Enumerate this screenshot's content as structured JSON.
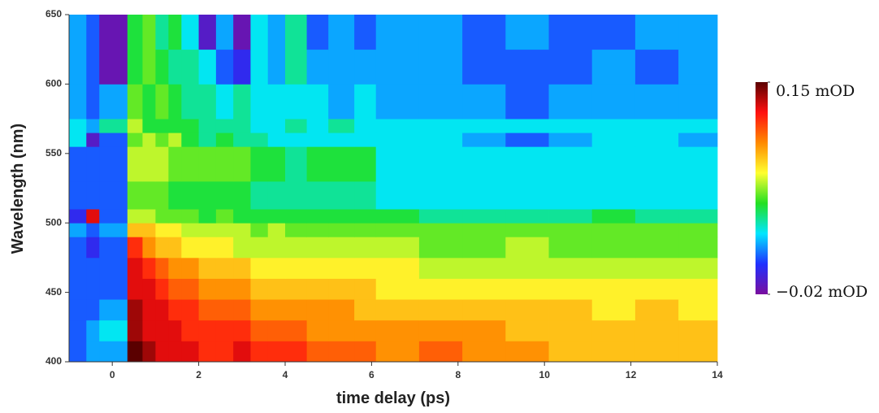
{
  "chart_data": {
    "type": "heatmap",
    "xlabel": "time delay (ps)",
    "ylabel": "Wavelength (nm)",
    "xlim": [
      -1,
      14
    ],
    "xticks": [
      0,
      2,
      4,
      6,
      8,
      10,
      12,
      14
    ],
    "ylim": [
      400,
      650
    ],
    "yticks": [
      400,
      450,
      500,
      550,
      600,
      650
    ],
    "x": [
      -1,
      -0.6,
      -0.3,
      0.35,
      0.7,
      1.0,
      1.3,
      1.6,
      2.0,
      2.4,
      2.8,
      3.2,
      3.6,
      4.0,
      4.5,
      5.0,
      5.6,
      6.1,
      7.1,
      8.1,
      9.1,
      10.1,
      11.1,
      12.1,
      13.1,
      14
    ],
    "y": [
      400,
      415,
      430,
      445,
      460,
      475,
      490,
      500,
      510,
      530,
      555,
      565,
      575,
      600,
      625,
      650
    ],
    "values": [
      [
        0.01,
        0.02,
        0.02,
        0.15,
        0.14,
        0.13,
        0.13,
        0.13,
        0.12,
        0.12,
        0.13,
        0.12,
        0.12,
        0.12,
        0.11,
        0.11,
        0.11,
        0.1,
        0.11,
        0.1,
        0.1,
        0.09,
        0.09,
        0.09,
        0.09
      ],
      [
        0.01,
        0.02,
        0.03,
        0.14,
        0.13,
        0.13,
        0.13,
        0.12,
        0.12,
        0.12,
        0.12,
        0.11,
        0.11,
        0.11,
        0.1,
        0.1,
        0.1,
        0.1,
        0.1,
        0.1,
        0.09,
        0.09,
        0.09,
        0.09,
        0.09
      ],
      [
        0.01,
        0.01,
        0.02,
        0.14,
        0.13,
        0.13,
        0.12,
        0.12,
        0.11,
        0.11,
        0.11,
        0.1,
        0.1,
        0.1,
        0.1,
        0.1,
        0.09,
        0.09,
        0.09,
        0.09,
        0.09,
        0.09,
        0.08,
        0.09,
        0.08
      ],
      [
        0.01,
        0.01,
        0.01,
        0.13,
        0.13,
        0.12,
        0.11,
        0.11,
        0.1,
        0.1,
        0.1,
        0.09,
        0.09,
        0.09,
        0.09,
        0.09,
        0.09,
        0.08,
        0.08,
        0.08,
        0.08,
        0.08,
        0.08,
        0.08,
        0.08
      ],
      [
        0.01,
        0.01,
        0.01,
        0.13,
        0.12,
        0.11,
        0.1,
        0.1,
        0.09,
        0.09,
        0.09,
        0.08,
        0.08,
        0.08,
        0.08,
        0.08,
        0.08,
        0.08,
        0.07,
        0.07,
        0.07,
        0.07,
        0.07,
        0.07,
        0.07
      ],
      [
        0.01,
        0.0,
        0.01,
        0.12,
        0.1,
        0.09,
        0.09,
        0.08,
        0.08,
        0.08,
        0.07,
        0.07,
        0.07,
        0.07,
        0.07,
        0.07,
        0.07,
        0.07,
        0.06,
        0.06,
        0.07,
        0.06,
        0.06,
        0.06,
        0.06
      ],
      [
        0.02,
        0.01,
        0.02,
        0.09,
        0.09,
        0.08,
        0.08,
        0.07,
        0.07,
        0.07,
        0.07,
        0.06,
        0.07,
        0.06,
        0.06,
        0.06,
        0.06,
        0.06,
        0.06,
        0.06,
        0.06,
        0.06,
        0.06,
        0.06,
        0.06
      ],
      [
        0.0,
        0.13,
        0.01,
        0.07,
        0.07,
        0.06,
        0.06,
        0.06,
        0.05,
        0.06,
        0.05,
        0.05,
        0.05,
        0.05,
        0.05,
        0.05,
        0.05,
        0.05,
        0.04,
        0.04,
        0.04,
        0.04,
        0.05,
        0.04,
        0.04
      ],
      [
        0.01,
        0.01,
        0.01,
        0.06,
        0.06,
        0.06,
        0.05,
        0.05,
        0.05,
        0.05,
        0.05,
        0.04,
        0.04,
        0.04,
        0.04,
        0.04,
        0.04,
        0.03,
        0.03,
        0.03,
        0.03,
        0.03,
        0.03,
        0.03,
        0.03
      ],
      [
        0.01,
        0.01,
        0.01,
        0.07,
        0.07,
        0.07,
        0.06,
        0.06,
        0.06,
        0.06,
        0.06,
        0.05,
        0.05,
        0.04,
        0.05,
        0.05,
        0.05,
        0.03,
        0.03,
        0.03,
        0.03,
        0.03,
        0.03,
        0.03,
        0.03
      ],
      [
        0.03,
        -0.01,
        0.01,
        0.06,
        0.07,
        0.06,
        0.07,
        0.05,
        0.04,
        0.05,
        0.04,
        0.04,
        0.03,
        0.03,
        0.03,
        0.03,
        0.03,
        0.03,
        0.03,
        0.02,
        0.01,
        0.02,
        0.03,
        0.03,
        0.02
      ],
      [
        0.03,
        0.02,
        0.04,
        0.07,
        0.05,
        0.05,
        0.05,
        0.05,
        0.04,
        0.04,
        0.04,
        0.03,
        0.03,
        0.04,
        0.03,
        0.04,
        0.03,
        0.03,
        0.03,
        0.03,
        0.03,
        0.03,
        0.03,
        0.03,
        0.03
      ],
      [
        0.02,
        0.01,
        0.02,
        0.06,
        0.05,
        0.06,
        0.05,
        0.04,
        0.04,
        0.03,
        0.04,
        0.03,
        0.03,
        0.03,
        0.03,
        0.02,
        0.03,
        0.02,
        0.02,
        0.02,
        0.01,
        0.02,
        0.02,
        0.02,
        0.02
      ],
      [
        0.02,
        0.01,
        -0.015,
        0.05,
        0.06,
        0.05,
        0.04,
        0.04,
        0.03,
        0.01,
        0.0,
        0.03,
        0.02,
        0.04,
        0.02,
        0.02,
        0.02,
        0.02,
        0.02,
        0.01,
        0.01,
        0.01,
        0.02,
        0.01,
        0.02
      ],
      [
        0.02,
        0.01,
        -0.015,
        0.05,
        0.06,
        0.04,
        0.05,
        0.03,
        -0.01,
        0.02,
        -0.015,
        0.03,
        0.02,
        0.04,
        0.01,
        0.02,
        0.01,
        0.02,
        0.02,
        0.01,
        0.02,
        0.01,
        0.01,
        0.02,
        0.02
      ]
    ],
    "clim": [
      -0.02,
      0.15
    ],
    "cticks": [
      {
        "value": 0.15,
        "label": "0.15 mOD"
      },
      {
        "value": -0.02,
        "label": "−0.02 mOD"
      }
    ],
    "colormap": [
      "#7a0e9e",
      "#2030ff",
      "#00e6ff",
      "#22e022",
      "#ffff30",
      "#ff8a00",
      "#ff1010",
      "#5a0000"
    ]
  }
}
